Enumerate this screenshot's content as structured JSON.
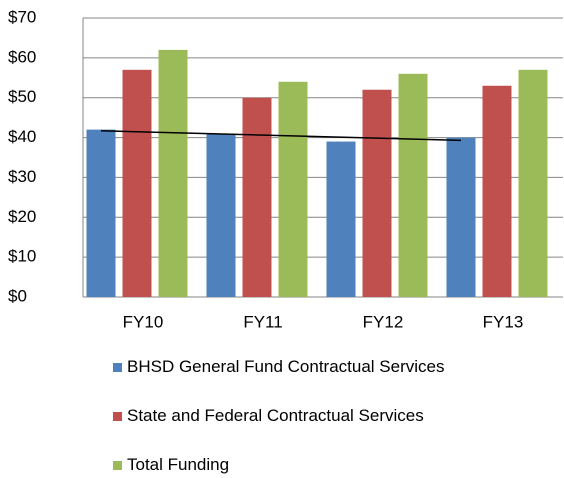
{
  "chart_data": {
    "type": "bar",
    "categories": [
      "FY10",
      "FY11",
      "FY12",
      "FY13"
    ],
    "series": [
      {
        "name": "BHSD General Fund Contractual Services",
        "color": "#4f81bd",
        "values": [
          42,
          41,
          39,
          40
        ]
      },
      {
        "name": "State and Federal Contractual Services",
        "color": "#c0504d",
        "values": [
          57,
          50,
          52,
          53
        ]
      },
      {
        "name": "Total Funding",
        "color": "#9bbb59",
        "values": [
          62,
          54,
          56,
          57
        ]
      }
    ],
    "ylim": [
      0,
      70
    ],
    "yticks": [
      {
        "value": 0,
        "label": "$0"
      },
      {
        "value": 10,
        "label": "$10"
      },
      {
        "value": 20,
        "label": "$20"
      },
      {
        "value": 30,
        "label": "$30"
      },
      {
        "value": 40,
        "label": "$40"
      },
      {
        "value": 50,
        "label": "$50"
      },
      {
        "value": 60,
        "label": "$60"
      },
      {
        "value": 70,
        "label": "$70"
      }
    ],
    "grid": true,
    "trendline": "linear",
    "legend": "bottom"
  }
}
